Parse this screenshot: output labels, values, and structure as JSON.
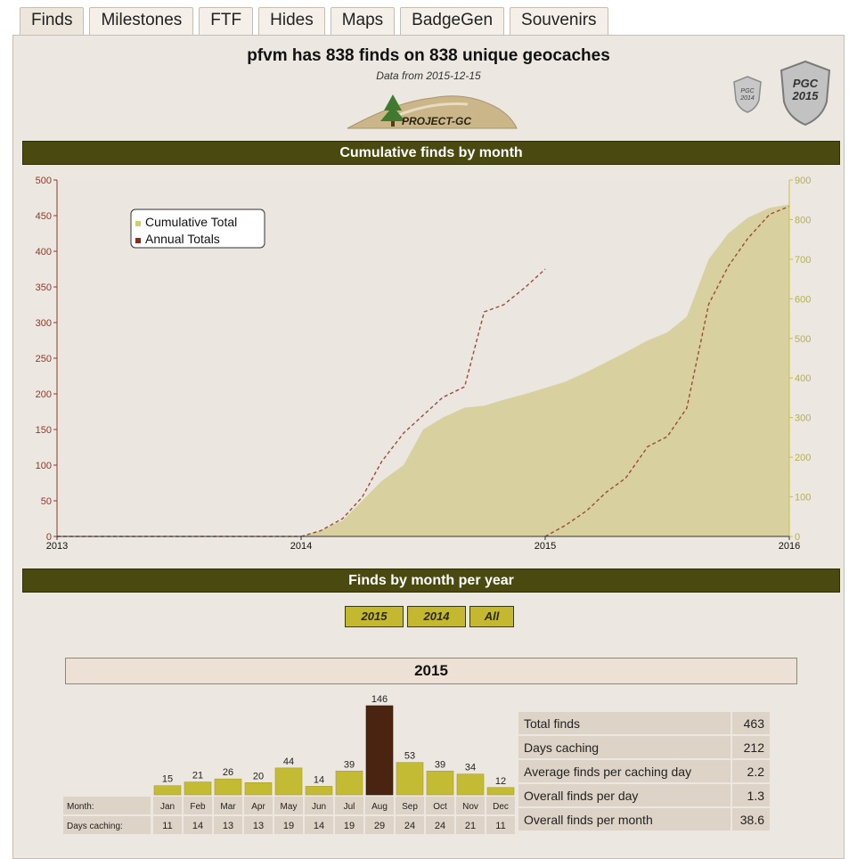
{
  "tabs": [
    {
      "label": "Finds",
      "active": true
    },
    {
      "label": "Milestones"
    },
    {
      "label": "FTF"
    },
    {
      "label": "Hides"
    },
    {
      "label": "Maps"
    },
    {
      "label": "BadgeGen"
    },
    {
      "label": "Souvenirs"
    }
  ],
  "header": {
    "title": "pfvm has 838 finds on 838 unique geocaches",
    "subtitle": "Data from 2015-12-15",
    "logo_text": "PROJECT-GC",
    "badges": [
      "PGC 2014",
      "PGC 2015"
    ]
  },
  "sections": {
    "cumulative_title": "Cumulative finds by month",
    "monthly_title": "Finds by month per year"
  },
  "year_buttons": [
    "2015",
    "2014",
    "All"
  ],
  "selected_year": "2015",
  "stats": [
    {
      "label": "Total finds",
      "value": "463"
    },
    {
      "label": "Days caching",
      "value": "212"
    },
    {
      "label": "Average finds per caching day",
      "value": "2.2"
    },
    {
      "label": "Overall finds per day",
      "value": "1.3"
    },
    {
      "label": "Overall finds per month",
      "value": "38.6"
    }
  ],
  "chart_data": [
    {
      "type": "line",
      "title": "Cumulative finds by month",
      "legend": [
        "Cumulative Total",
        "Annual Totals"
      ],
      "legend_position": "top-left",
      "x_ticks": [
        "2013",
        "2014",
        "2015",
        "2016"
      ],
      "y_left": {
        "range": [
          0,
          500
        ],
        "ticks": [
          0,
          50,
          100,
          150,
          200,
          250,
          300,
          350,
          400,
          450,
          500
        ]
      },
      "y_right": {
        "range": [
          0,
          900
        ],
        "ticks": [
          0,
          100,
          200,
          300,
          400,
          500,
          600,
          700,
          800,
          900
        ]
      },
      "colors": {
        "cumulative": "#d9d0a0",
        "annual": "#9b4b3b",
        "left_axis": "#8b3a2a",
        "right_axis": "#c8c04a"
      },
      "series": [
        {
          "name": "Cumulative Total",
          "axis": "right",
          "kind": "area",
          "x": [
            2014.0,
            2014.08,
            2014.17,
            2014.25,
            2014.33,
            2014.42,
            2014.5,
            2014.58,
            2014.67,
            2014.75,
            2014.83,
            2014.92,
            2015.0,
            2015.08,
            2015.17,
            2015.25,
            2015.33,
            2015.42,
            2015.5,
            2015.58,
            2015.67,
            2015.75,
            2015.83,
            2015.92,
            2016.0
          ],
          "y": [
            0,
            15,
            40,
            90,
            140,
            180,
            270,
            300,
            325,
            330,
            345,
            360,
            375,
            390,
            415,
            440,
            465,
            495,
            515,
            555,
            700,
            765,
            805,
            830,
            838
          ]
        },
        {
          "name": "Annual Totals",
          "axis": "left",
          "kind": "dashed-line",
          "segments": [
            {
              "year": "2013",
              "x": [
                2013.0,
                2014.0
              ],
              "y": [
                0,
                0
              ]
            },
            {
              "year": "2014",
              "x": [
                2014.0,
                2014.08,
                2014.17,
                2014.25,
                2014.33,
                2014.42,
                2014.5,
                2014.58,
                2014.67,
                2014.75,
                2014.83,
                2014.92,
                2015.0
              ],
              "y": [
                0,
                8,
                25,
                55,
                105,
                145,
                170,
                195,
                210,
                315,
                325,
                350,
                375
              ]
            },
            {
              "year": "2015",
              "x": [
                2015.0,
                2015.08,
                2015.17,
                2015.25,
                2015.33,
                2015.42,
                2015.5,
                2015.58,
                2015.67,
                2015.75,
                2015.83,
                2015.92,
                2016.0
              ],
              "y": [
                0,
                15,
                36,
                62,
                82,
                126,
                140,
                180,
                326,
                379,
                418,
                452,
                463
              ]
            }
          ]
        }
      ]
    },
    {
      "type": "bar",
      "title": "2015",
      "categories": [
        "Jan",
        "Feb",
        "Mar",
        "Apr",
        "May",
        "Jun",
        "Jul",
        "Aug",
        "Sep",
        "Oct",
        "Nov",
        "Dec"
      ],
      "values": [
        15,
        21,
        26,
        20,
        44,
        14,
        39,
        146,
        53,
        39,
        34,
        12
      ],
      "highlight_index": 7,
      "days_caching": [
        11,
        14,
        13,
        13,
        19,
        14,
        19,
        29,
        24,
        24,
        21,
        11
      ],
      "row_labels": {
        "month": "Month:",
        "days": "Days caching:"
      },
      "colors": {
        "bar": "#c4bb35",
        "highlight": "#4a2410"
      }
    }
  ]
}
